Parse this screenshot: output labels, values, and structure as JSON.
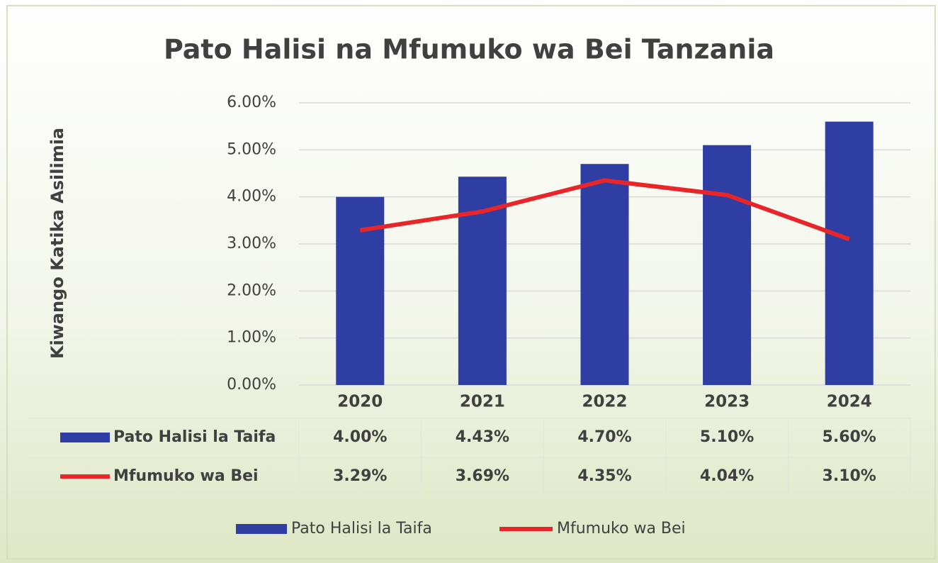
{
  "chart_data": {
    "type": "bar",
    "title": "Pato Halisi na Mfumuko wa Bei Tanzania",
    "y_label": "Kiwango Katika Asilimia",
    "categories": [
      "2020",
      "2021",
      "2022",
      "2023",
      "2024"
    ],
    "series": [
      {
        "name": "Pato Halisi la Taifa",
        "type": "bar",
        "color": "#2f3ea3",
        "values": [
          4.0,
          4.43,
          4.7,
          5.1,
          5.6
        ],
        "value_labels": [
          "4.00%",
          "4.43%",
          "4.70%",
          "5.10%",
          "5.60%"
        ]
      },
      {
        "name": "Mfumuko wa Bei",
        "type": "line",
        "color": "#e8262a",
        "values": [
          3.29,
          3.69,
          4.35,
          4.04,
          3.1
        ],
        "value_labels": [
          "3.29%",
          "3.69%",
          "4.35%",
          "4.04%",
          "3.10%"
        ]
      }
    ],
    "ylim": [
      0,
      6
    ],
    "yticks": [
      {
        "value": 0,
        "label": "0.00%"
      },
      {
        "value": 1,
        "label": "1.00%"
      },
      {
        "value": 2,
        "label": "2.00%"
      },
      {
        "value": 3,
        "label": "3.00%"
      },
      {
        "value": 4,
        "label": "4.00%"
      },
      {
        "value": 5,
        "label": "5.00%"
      },
      {
        "value": 6,
        "label": "6.00%"
      }
    ],
    "grid": true,
    "legend": "bottom"
  }
}
